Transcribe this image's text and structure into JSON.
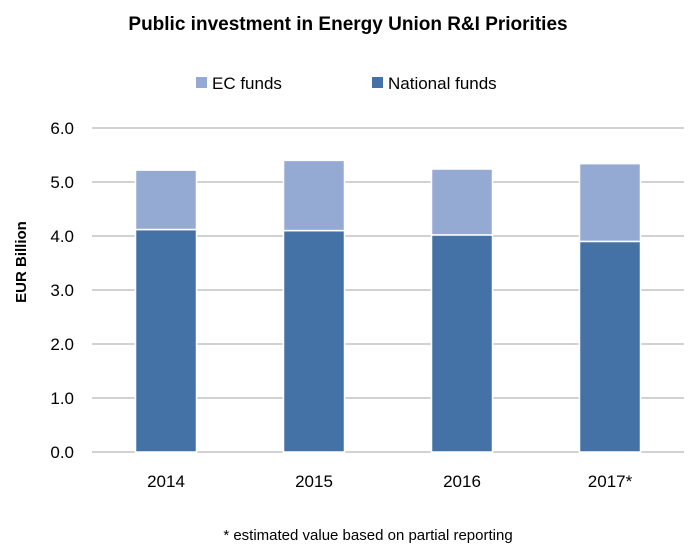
{
  "chart_data": {
    "type": "bar",
    "stacked": true,
    "title": "Public investment in Energy Union R&I Priorities",
    "ylabel": "EUR Billion",
    "xlabel": "",
    "categories": [
      "2014",
      "2015",
      "2016",
      "2017*"
    ],
    "series": [
      {
        "name": "National funds",
        "color": "#4472a7",
        "values": [
          4.12,
          4.1,
          4.02,
          3.9
        ]
      },
      {
        "name": "EC funds",
        "color": "#95aad3",
        "values": [
          1.1,
          1.3,
          1.22,
          1.44
        ]
      }
    ],
    "legend_order": [
      "EC funds",
      "National funds"
    ],
    "ylim": [
      0,
      6
    ],
    "yticks": [
      "0.0",
      "1.0",
      "2.0",
      "3.0",
      "4.0",
      "5.0",
      "6.0"
    ],
    "grid": true,
    "legend": "top-center",
    "footnote": "* estimated value  based on partial reporting"
  }
}
